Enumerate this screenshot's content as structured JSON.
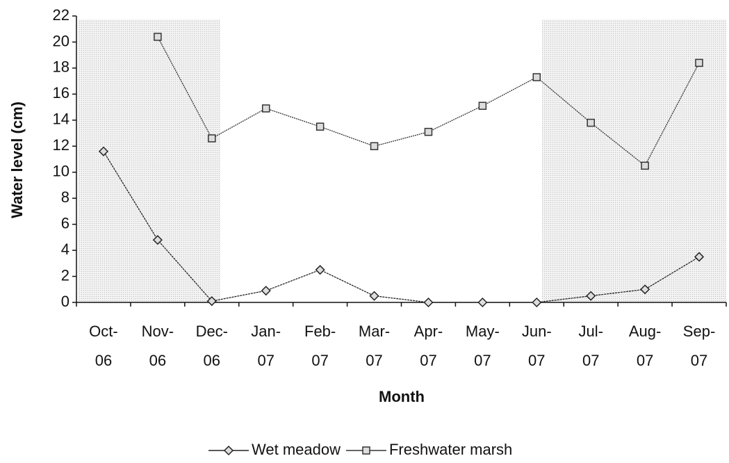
{
  "chart_data": {
    "type": "line",
    "x_label": "Month",
    "y_label": "Water level (cm)",
    "categories": [
      "Oct-06",
      "Nov-06",
      "Dec-06",
      "Jan-07",
      "Feb-07",
      "Mar-07",
      "Apr-07",
      "May-07",
      "Jun-07",
      "Jul-07",
      "Aug-07",
      "Sep-07"
    ],
    "series": [
      {
        "name": "Wet meadow",
        "color": "#222222",
        "marker": "diamond",
        "values": [
          11.6,
          4.8,
          0.1,
          0.9,
          2.5,
          0.5,
          0,
          0,
          0,
          0.5,
          1.0,
          3.5
        ]
      },
      {
        "name": "Freshwater marsh",
        "color": "#333333",
        "marker": "square",
        "values": [
          null,
          20.4,
          12.6,
          14.9,
          13.5,
          12.0,
          13.1,
          15.1,
          17.3,
          13.8,
          10.5,
          18.4
        ]
      }
    ],
    "ylim": [
      0,
      22
    ],
    "yticks": [
      0,
      2,
      4,
      6,
      8,
      10,
      12,
      14,
      16,
      18,
      20,
      22
    ]
  }
}
